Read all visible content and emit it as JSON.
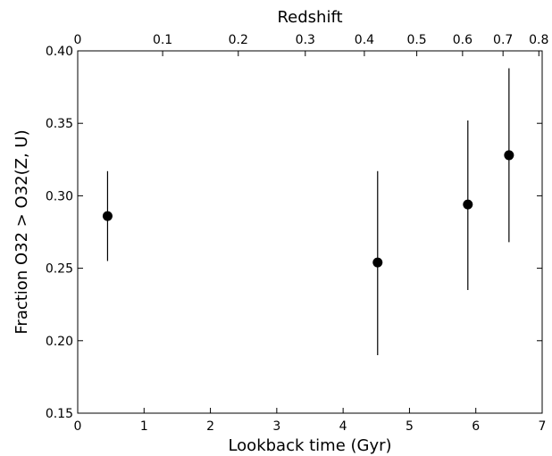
{
  "chart_data": {
    "type": "scatter",
    "title": "",
    "xlabel": "Lookback time (Gyr)",
    "ylabel": "Fraction O32 > O32(Z, U)",
    "top_xlabel": "Redshift",
    "xlim": [
      0,
      7
    ],
    "ylim": [
      0.15,
      0.4
    ],
    "x_ticks": [
      0,
      1,
      2,
      3,
      4,
      5,
      6,
      7
    ],
    "y_ticks": [
      0.15,
      0.2,
      0.25,
      0.3,
      0.35,
      0.4
    ],
    "y_tick_labels": [
      "0.15",
      "0.20",
      "0.25",
      "0.30",
      "0.35",
      "0.40"
    ],
    "top_ticks": [
      {
        "label": "0",
        "lookback": 0.0
      },
      {
        "label": "0.1",
        "lookback": 1.28
      },
      {
        "label": "0.2",
        "lookback": 2.42
      },
      {
        "label": "0.3",
        "lookback": 3.43
      },
      {
        "label": "0.4",
        "lookback": 4.32
      },
      {
        "label": "0.5",
        "lookback": 5.11
      },
      {
        "label": "0.6",
        "lookback": 5.8
      },
      {
        "label": "0.7",
        "lookback": 6.41
      },
      {
        "label": "0.8",
        "lookback": 6.95
      }
    ],
    "points": [
      {
        "x": 0.45,
        "y": 0.286,
        "y_low": 0.255,
        "y_high": 0.317
      },
      {
        "x": 4.52,
        "y": 0.254,
        "y_low": 0.19,
        "y_high": 0.317
      },
      {
        "x": 5.88,
        "y": 0.294,
        "y_low": 0.235,
        "y_high": 0.352
      },
      {
        "x": 6.5,
        "y": 0.328,
        "y_low": 0.268,
        "y_high": 0.388
      }
    ],
    "marker_color": "#000000",
    "grid": false,
    "legend": "none"
  }
}
